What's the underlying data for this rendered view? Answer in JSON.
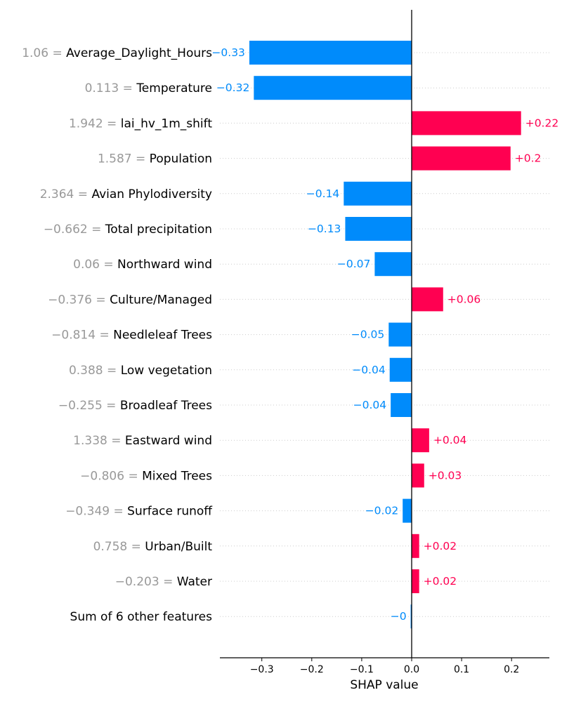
{
  "chart_data": {
    "type": "bar",
    "orientation": "horizontal",
    "title": "",
    "xlabel": "SHAP value",
    "ylabel": "",
    "xlim": [
      -0.385,
      0.275
    ],
    "xticks": [
      {
        "value": -0.3,
        "label": "−0.3"
      },
      {
        "value": -0.2,
        "label": "−0.2"
      },
      {
        "value": -0.1,
        "label": "−0.1"
      },
      {
        "value": 0.0,
        "label": "0.0"
      },
      {
        "value": 0.1,
        "label": "0.1"
      },
      {
        "value": 0.2,
        "label": "0.2"
      }
    ],
    "grid": "dotted horizontal lines at each feature",
    "colors": {
      "positive": "#ff0051",
      "negative": "#008bfb",
      "feature_value": "#999999",
      "axis": "#000000",
      "grid": "#cccccc"
    },
    "features": [
      {
        "value_text": "1.06",
        "name": "Average_Daylight_Hours",
        "shap": -0.325,
        "label": "−0.33"
      },
      {
        "value_text": "0.113",
        "name": "Temperature",
        "shap": -0.316,
        "label": "−0.32"
      },
      {
        "value_text": "1.942",
        "name": "lai_hv_1m_shift",
        "shap": 0.219,
        "label": "+0.22"
      },
      {
        "value_text": "1.587",
        "name": "Population",
        "shap": 0.198,
        "label": "+0.2"
      },
      {
        "value_text": "2.364",
        "name": "Avian Phylodiversity",
        "shap": -0.136,
        "label": "−0.14"
      },
      {
        "value_text": "−0.662",
        "name": "Total precipitation",
        "shap": -0.133,
        "label": "−0.13"
      },
      {
        "value_text": "0.06",
        "name": "Northward wind",
        "shap": -0.074,
        "label": "−0.07"
      },
      {
        "value_text": "−0.376",
        "name": "Culture/Managed",
        "shap": 0.063,
        "label": "+0.06"
      },
      {
        "value_text": "−0.814",
        "name": "Needleleaf Trees",
        "shap": -0.046,
        "label": "−0.05"
      },
      {
        "value_text": "0.388",
        "name": "Low vegetation",
        "shap": -0.044,
        "label": "−0.04"
      },
      {
        "value_text": "−0.255",
        "name": "Broadleaf Trees",
        "shap": -0.042,
        "label": "−0.04"
      },
      {
        "value_text": "1.338",
        "name": "Eastward wind",
        "shap": 0.035,
        "label": "+0.04"
      },
      {
        "value_text": "−0.806",
        "name": "Mixed Trees",
        "shap": 0.025,
        "label": "+0.03"
      },
      {
        "value_text": "−0.349",
        "name": "Surface runoff",
        "shap": -0.018,
        "label": "−0.02"
      },
      {
        "value_text": "0.758",
        "name": "Urban/Built",
        "shap": 0.015,
        "label": "+0.02"
      },
      {
        "value_text": "−0.203",
        "name": "Water",
        "shap": 0.015,
        "label": "+0.02"
      },
      {
        "value_text": "",
        "name": "Sum of 6 other features",
        "shap": -0.002,
        "label": "−0"
      }
    ]
  }
}
